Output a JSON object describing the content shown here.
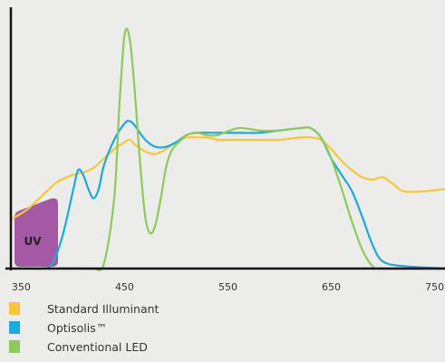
{
  "chart_data": {
    "type": "line",
    "title": "",
    "xlabel": "",
    "ylabel": "",
    "xlim": [
      340,
      760
    ],
    "ylim": [
      0,
      1.0
    ],
    "x_ticks": [
      "350",
      "450",
      "550",
      "650",
      "750"
    ],
    "annotation": {
      "text": "UV",
      "color": "#a559a4"
    },
    "grid": false,
    "legend_position": "bottom-left",
    "series": [
      {
        "name": "Standard Illuminant",
        "color": "#f8c53a",
        "x": [
          340,
          355,
          370,
          385,
          400,
          410,
          420,
          430,
          440,
          450,
          455,
          460,
          470,
          480,
          490,
          500,
          510,
          520,
          530,
          540,
          550,
          560,
          580,
          600,
          620,
          630,
          640,
          650,
          660,
          670,
          680,
          690,
          700,
          710,
          720,
          740,
          760
        ],
        "y": [
          0.21,
          0.25,
          0.31,
          0.37,
          0.4,
          0.41,
          0.43,
          0.47,
          0.51,
          0.54,
          0.55,
          0.53,
          0.5,
          0.49,
          0.51,
          0.54,
          0.56,
          0.56,
          0.56,
          0.55,
          0.55,
          0.55,
          0.55,
          0.55,
          0.56,
          0.56,
          0.55,
          0.51,
          0.46,
          0.42,
          0.39,
          0.38,
          0.39,
          0.36,
          0.33,
          0.33,
          0.34
        ]
      },
      {
        "name": "Optisolis™",
        "color": "#1aa9e0",
        "x": [
          340,
          360,
          370,
          380,
          390,
          400,
          405,
          410,
          415,
          420,
          425,
          430,
          440,
          450,
          455,
          460,
          470,
          480,
          490,
          500,
          510,
          520,
          540,
          560,
          580,
          600,
          620,
          630,
          640,
          650,
          660,
          670,
          680,
          690,
          700,
          720,
          760
        ],
        "y": [
          0.0,
          0.0,
          0.0,
          0.02,
          0.14,
          0.33,
          0.42,
          0.4,
          0.34,
          0.3,
          0.34,
          0.44,
          0.55,
          0.62,
          0.63,
          0.61,
          0.55,
          0.52,
          0.52,
          0.54,
          0.57,
          0.58,
          0.58,
          0.58,
          0.58,
          0.59,
          0.6,
          0.6,
          0.56,
          0.47,
          0.4,
          0.33,
          0.22,
          0.1,
          0.03,
          0.01,
          0.0
        ]
      },
      {
        "name": "Conventional LED",
        "color": "#8ccb5a",
        "x": [
          340,
          410,
          420,
          430,
          440,
          445,
          450,
          455,
          460,
          465,
          470,
          475,
          480,
          485,
          490,
          495,
          500,
          505,
          510,
          520,
          530,
          540,
          560,
          580,
          600,
          620,
          630,
          640,
          650,
          660,
          670,
          680,
          690,
          700,
          760
        ],
        "y": [
          0.0,
          0.0,
          0.0,
          0.02,
          0.3,
          0.7,
          1.0,
          0.98,
          0.75,
          0.45,
          0.22,
          0.15,
          0.19,
          0.3,
          0.43,
          0.5,
          0.53,
          0.55,
          0.57,
          0.58,
          0.57,
          0.57,
          0.6,
          0.59,
          0.59,
          0.6,
          0.6,
          0.56,
          0.47,
          0.34,
          0.2,
          0.08,
          0.01,
          0.0,
          0.0
        ]
      }
    ]
  }
}
